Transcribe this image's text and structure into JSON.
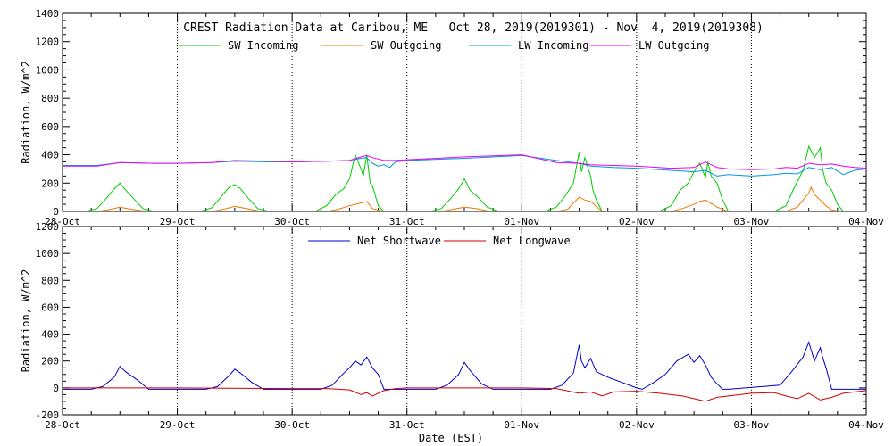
{
  "colors": {
    "sw_incoming": "#00cc00",
    "sw_outgoing": "#ee7700",
    "lw_incoming": "#0099dd",
    "lw_outgoing": "#ee00ee",
    "net_shortwave": "#0000cc",
    "net_longwave": "#cc0000",
    "axis": "#000000"
  },
  "chart_data": [
    {
      "type": "line",
      "title": "CREST Radiation Data at Caribou, ME   Oct 28, 2019(2019301) - Nov  4, 2019(2019308)",
      "ylabel": "Radiation, W/m^2",
      "xlabel": "",
      "x_unit": "day offset from 28-Oct (0 = 28-Oct 00:00 EST)",
      "xlim": [
        0,
        7
      ],
      "ylim": [
        0,
        1400
      ],
      "y_ticks": [
        0,
        200,
        400,
        600,
        800,
        1000,
        1200,
        1400
      ],
      "x_tick_labels": [
        "28-Oct",
        "29-Oct",
        "30-Oct",
        "31-Oct",
        "01-Nov",
        "02-Nov",
        "03-Nov",
        "04-Nov"
      ],
      "grid": true,
      "legend_placement": "top-center",
      "series": [
        {
          "name": "SW Incoming",
          "color_key": "sw_incoming",
          "x": [
            0,
            0.2,
            0.3,
            0.38,
            0.45,
            0.5,
            0.55,
            0.62,
            0.7,
            0.8,
            1.2,
            1.3,
            1.38,
            1.45,
            1.5,
            1.55,
            1.62,
            1.7,
            1.8,
            2.2,
            2.3,
            2.38,
            2.45,
            2.5,
            2.55,
            2.6,
            2.62,
            2.65,
            2.68,
            2.7,
            2.75,
            2.8,
            3.2,
            3.3,
            3.38,
            3.45,
            3.5,
            3.52,
            3.55,
            3.62,
            3.7,
            3.8,
            4.2,
            4.3,
            4.38,
            4.45,
            4.5,
            4.52,
            4.55,
            4.6,
            4.62,
            4.65,
            4.7,
            5.2,
            5.3,
            5.38,
            5.45,
            5.5,
            5.55,
            5.6,
            5.62,
            5.65,
            5.7,
            5.75,
            5.8,
            6.2,
            6.3,
            6.38,
            6.45,
            6.5,
            6.55,
            6.6,
            6.62,
            6.65,
            6.7,
            6.75,
            6.8,
            7
          ],
          "y": [
            0,
            0,
            20,
            90,
            160,
            200,
            150,
            90,
            20,
            0,
            0,
            25,
            100,
            170,
            190,
            160,
            90,
            20,
            0,
            0,
            40,
            120,
            160,
            230,
            400,
            300,
            250,
            400,
            200,
            180,
            40,
            0,
            0,
            20,
            90,
            160,
            230,
            200,
            150,
            100,
            30,
            0,
            0,
            30,
            110,
            200,
            420,
            280,
            380,
            250,
            150,
            80,
            0,
            0,
            40,
            150,
            200,
            280,
            340,
            240,
            350,
            250,
            200,
            80,
            0,
            0,
            40,
            180,
            290,
            460,
            380,
            450,
            300,
            200,
            150,
            50,
            0,
            0
          ]
        },
        {
          "name": "SW Outgoing",
          "color_key": "sw_outgoing",
          "x": [
            0,
            0.3,
            0.4,
            0.5,
            0.6,
            0.7,
            0.8,
            1.3,
            1.4,
            1.5,
            1.6,
            1.7,
            1.8,
            2.3,
            2.4,
            2.5,
            2.6,
            2.65,
            2.7,
            2.8,
            3.3,
            3.4,
            3.5,
            3.6,
            3.7,
            3.8,
            4.3,
            4.4,
            4.5,
            4.55,
            4.6,
            4.7,
            5.3,
            5.4,
            5.5,
            5.55,
            5.6,
            5.7,
            5.8,
            6.3,
            6.4,
            6.5,
            6.52,
            6.55,
            6.6,
            6.65,
            6.7,
            6.8,
            7
          ],
          "y": [
            0,
            0,
            12,
            30,
            15,
            5,
            0,
            0,
            15,
            35,
            20,
            5,
            0,
            0,
            15,
            40,
            60,
            70,
            20,
            0,
            0,
            15,
            30,
            20,
            5,
            0,
            0,
            15,
            100,
            80,
            70,
            0,
            0,
            20,
            50,
            70,
            80,
            30,
            0,
            0,
            30,
            130,
            170,
            120,
            80,
            40,
            10,
            0,
            0
          ]
        },
        {
          "name": "LW Incoming",
          "color_key": "lw_incoming",
          "x": [
            0,
            0.3,
            0.5,
            0.8,
            1.0,
            1.3,
            1.5,
            1.8,
            2.0,
            2.3,
            2.5,
            2.6,
            2.65,
            2.7,
            2.75,
            2.8,
            2.85,
            2.9,
            3.0,
            3.5,
            4.0,
            4.3,
            4.5,
            4.6,
            4.8,
            5.0,
            5.3,
            5.5,
            5.6,
            5.7,
            5.8,
            6.0,
            6.2,
            6.3,
            6.4,
            6.5,
            6.6,
            6.7,
            6.8,
            6.9,
            7.0
          ],
          "y": [
            325,
            325,
            345,
            340,
            340,
            345,
            355,
            350,
            350,
            355,
            360,
            375,
            380,
            340,
            320,
            330,
            310,
            350,
            360,
            375,
            395,
            360,
            340,
            320,
            310,
            305,
            290,
            280,
            290,
            250,
            260,
            250,
            260,
            270,
            265,
            310,
            295,
            310,
            260,
            290,
            300
          ]
        },
        {
          "name": "LW Outgoing",
          "color_key": "lw_outgoing",
          "x": [
            0,
            0.3,
            0.5,
            0.8,
            1.0,
            1.3,
            1.5,
            1.8,
            2.0,
            2.3,
            2.5,
            2.6,
            2.65,
            2.7,
            2.75,
            2.8,
            2.9,
            3.0,
            3.5,
            4.0,
            4.3,
            4.5,
            4.6,
            4.8,
            5.0,
            5.3,
            5.5,
            5.6,
            5.7,
            5.8,
            6.0,
            6.2,
            6.3,
            6.4,
            6.5,
            6.6,
            6.7,
            6.8,
            6.9,
            7.0
          ],
          "y": [
            320,
            320,
            345,
            340,
            340,
            345,
            360,
            355,
            350,
            355,
            360,
            385,
            395,
            380,
            370,
            360,
            360,
            365,
            385,
            400,
            345,
            340,
            330,
            325,
            320,
            305,
            310,
            350,
            310,
            300,
            295,
            300,
            310,
            305,
            340,
            330,
            335,
            320,
            310,
            305
          ]
        }
      ]
    },
    {
      "type": "line",
      "title": "",
      "ylabel": "Radiation, W/m^2",
      "xlabel": "Date (EST)",
      "x_unit": "day offset from 28-Oct (0 = 28-Oct 00:00 EST)",
      "xlim": [
        0,
        7
      ],
      "ylim": [
        -200,
        1200
      ],
      "y_ticks": [
        -200,
        0,
        200,
        400,
        600,
        800,
        1000,
        1200
      ],
      "x_tick_labels": [
        "28-Oct",
        "29-Oct",
        "30-Oct",
        "31-Oct",
        "01-Nov",
        "02-Nov",
        "03-Nov",
        "04-Nov"
      ],
      "grid": true,
      "legend_placement": "top-center",
      "series": [
        {
          "name": "Net Shortwave",
          "color_key": "net_shortwave",
          "x": [
            0,
            0.25,
            0.35,
            0.45,
            0.5,
            0.55,
            0.65,
            0.75,
            1.25,
            1.35,
            1.45,
            1.5,
            1.55,
            1.65,
            1.75,
            2.25,
            2.35,
            2.45,
            2.5,
            2.55,
            2.6,
            2.65,
            2.7,
            2.75,
            2.8,
            3.25,
            3.35,
            3.45,
            3.5,
            3.55,
            3.65,
            3.75,
            4.25,
            4.35,
            4.45,
            4.5,
            4.52,
            4.55,
            4.6,
            4.65,
            4.7,
            4.75,
            5.0,
            5.05,
            5.15,
            5.25,
            5.35,
            5.45,
            5.5,
            5.55,
            5.6,
            5.65,
            5.7,
            5.75,
            5.8,
            6.25,
            6.35,
            6.45,
            6.5,
            6.55,
            6.6,
            6.62,
            6.65,
            6.7,
            6.8,
            7.0
          ],
          "y": [
            -10,
            -10,
            10,
            80,
            160,
            120,
            60,
            -10,
            -10,
            10,
            90,
            140,
            110,
            40,
            -10,
            -10,
            20,
            110,
            150,
            200,
            170,
            230,
            150,
            100,
            -10,
            -10,
            20,
            100,
            190,
            130,
            30,
            -10,
            -10,
            20,
            110,
            320,
            200,
            150,
            220,
            120,
            100,
            80,
            0,
            -10,
            40,
            100,
            200,
            250,
            190,
            240,
            170,
            80,
            30,
            -10,
            -10,
            20,
            120,
            230,
            340,
            200,
            300,
            230,
            150,
            -10,
            -10,
            -10
          ]
        },
        {
          "name": "Net Longwave",
          "color_key": "net_longwave",
          "x": [
            0,
            1,
            2,
            2.3,
            2.5,
            2.6,
            2.65,
            2.7,
            2.8,
            2.9,
            3,
            4,
            4.3,
            4.5,
            4.6,
            4.7,
            4.8,
            5,
            5.2,
            5.4,
            5.5,
            5.6,
            5.7,
            5.8,
            5.9,
            6,
            6.2,
            6.3,
            6.4,
            6.5,
            6.6,
            6.7,
            6.8,
            6.9,
            7
          ],
          "y": [
            0,
            0,
            -5,
            -5,
            -15,
            -50,
            -35,
            -60,
            -20,
            -5,
            0,
            0,
            -5,
            -40,
            -30,
            -60,
            -30,
            -25,
            -40,
            -60,
            -80,
            -100,
            -70,
            -60,
            -50,
            -40,
            -35,
            -60,
            -80,
            -40,
            -90,
            -70,
            -40,
            -30,
            -20
          ]
        }
      ]
    }
  ]
}
